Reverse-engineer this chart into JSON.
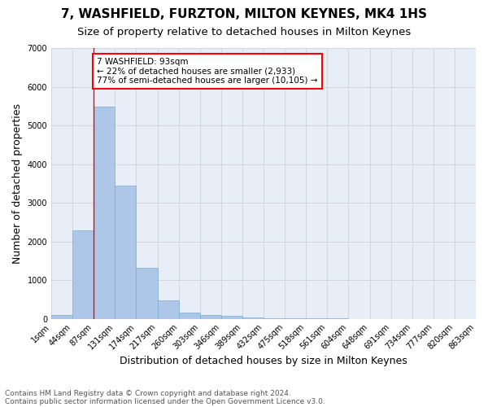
{
  "title": "7, WASHFIELD, FURZTON, MILTON KEYNES, MK4 1HS",
  "subtitle": "Size of property relative to detached houses in Milton Keynes",
  "xlabel": "Distribution of detached houses by size in Milton Keynes",
  "ylabel": "Number of detached properties",
  "footnote1": "Contains HM Land Registry data © Crown copyright and database right 2024.",
  "footnote2": "Contains public sector information licensed under the Open Government Licence v3.0.",
  "annotation_line1": "7 WASHFIELD: 93sqm",
  "annotation_line2": "← 22% of detached houses are smaller (2,933)",
  "annotation_line3": "77% of semi-detached houses are larger (10,105) →",
  "bar_values": [
    100,
    2280,
    5480,
    3440,
    1310,
    470,
    160,
    90,
    70,
    30,
    10,
    5,
    3,
    2,
    1,
    1,
    0,
    0,
    0,
    0
  ],
  "bar_color": "#aec6e8",
  "bar_edge_color": "#7bafd4",
  "x_labels": [
    "1sqm",
    "44sqm",
    "87sqm",
    "131sqm",
    "174sqm",
    "217sqm",
    "260sqm",
    "303sqm",
    "346sqm",
    "389sqm",
    "432sqm",
    "475sqm",
    "518sqm",
    "561sqm",
    "604sqm",
    "648sqm",
    "691sqm",
    "734sqm",
    "777sqm",
    "820sqm",
    "863sqm"
  ],
  "ylim": [
    0,
    7000
  ],
  "yticks": [
    0,
    1000,
    2000,
    3000,
    4000,
    5000,
    6000,
    7000
  ],
  "red_line_x": 2,
  "annotation_box_color": "white",
  "annotation_box_edge_color": "red",
  "grid_color": "#cccccc",
  "background_color": "#e8eef8",
  "title_fontsize": 11,
  "subtitle_fontsize": 9.5,
  "axis_label_fontsize": 9,
  "tick_fontsize": 7,
  "annotation_fontsize": 7.5,
  "footnote_fontsize": 6.5
}
